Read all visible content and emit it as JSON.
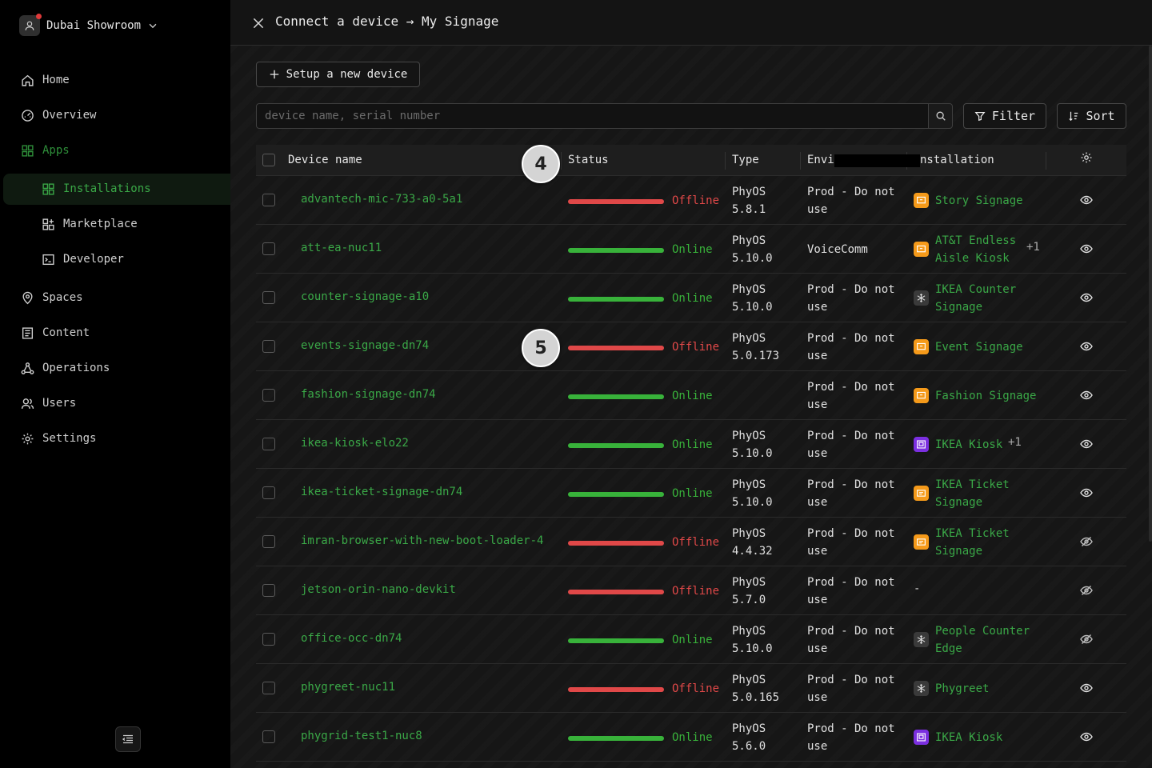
{
  "org": {
    "name": "Dubai Showroom"
  },
  "nav": {
    "home": "Home",
    "overview": "Overview",
    "apps": "Apps",
    "installations": "Installations",
    "marketplace": "Marketplace",
    "developer": "Developer",
    "spaces": "Spaces",
    "content": "Content",
    "operations": "Operations",
    "users": "Users",
    "settings": "Settings"
  },
  "panel": {
    "title": "Connect a device → My Signage"
  },
  "toolbar": {
    "setup_label": "Setup a new device",
    "search_placeholder": "device name, serial number",
    "filter_label": "Filter",
    "sort_label": "Sort"
  },
  "table": {
    "headers": {
      "device_name": "Device name",
      "status": "Status",
      "type": "Type",
      "environment": "Envi",
      "installation": "nstallation"
    },
    "rows": [
      {
        "name": "advantech-mic-733-a0-5a1",
        "status": "Offline",
        "type1": "PhyOS",
        "type2": "5.8.1",
        "env1": "Prod - Do not",
        "env2": "use",
        "inst1": "Story Signage",
        "inst2": "",
        "inst_icon": "signage",
        "extra": "",
        "visible": true
      },
      {
        "name": "att-ea-nuc11",
        "status": "Online",
        "type1": "PhyOS",
        "type2": "5.10.0",
        "env1": "VoiceComm",
        "env2": "",
        "inst1": "AT&T Endless",
        "inst2": "Aisle Kiosk",
        "inst_icon": "signage",
        "extra": "+1",
        "visible": true
      },
      {
        "name": "counter-signage-a10",
        "status": "Online",
        "type1": "PhyOS",
        "type2": "5.10.0",
        "env1": "Prod - Do not",
        "env2": "use",
        "inst1": "IKEA Counter",
        "inst2": "Signage",
        "inst_icon": "gear",
        "extra": "",
        "visible": true
      },
      {
        "name": "events-signage-dn74",
        "status": "Offline",
        "type1": "PhyOS",
        "type2": "5.0.173",
        "env1": "Prod - Do not",
        "env2": "use",
        "inst1": "Event Signage",
        "inst2": "",
        "inst_icon": "signage",
        "extra": "",
        "visible": true
      },
      {
        "name": "fashion-signage-dn74",
        "status": "Online",
        "type1": "",
        "type2": "",
        "env1": "Prod - Do not",
        "env2": "use",
        "inst1": "Fashion Signage",
        "inst2": "",
        "inst_icon": "signage",
        "extra": "",
        "visible": true
      },
      {
        "name": "ikea-kiosk-elo22",
        "status": "Online",
        "type1": "PhyOS",
        "type2": "5.10.0",
        "env1": "Prod - Do not",
        "env2": "use",
        "inst1": "IKEA Kiosk",
        "inst2": "",
        "inst_icon": "kiosk",
        "extra": "+1",
        "visible": true
      },
      {
        "name": "ikea-ticket-signage-dn74",
        "status": "Online",
        "type1": "PhyOS",
        "type2": "5.10.0",
        "env1": "Prod - Do not",
        "env2": "use",
        "inst1": "IKEA Ticket",
        "inst2": "Signage",
        "inst_icon": "ticket",
        "extra": "",
        "visible": true
      },
      {
        "name": "imran-browser-with-new-boot-loader-4",
        "status": "Offline",
        "type1": "PhyOS",
        "type2": "4.4.32",
        "env1": "Prod - Do not",
        "env2": "use",
        "inst1": "IKEA Ticket",
        "inst2": "Signage",
        "inst_icon": "ticket",
        "extra": "",
        "visible": false
      },
      {
        "name": "jetson-orin-nano-devkit",
        "status": "Offline",
        "type1": "PhyOS",
        "type2": "5.7.0",
        "env1": "Prod - Do not",
        "env2": "use",
        "inst1": "-",
        "inst2": "",
        "inst_icon": "none",
        "extra": "",
        "visible": false
      },
      {
        "name": "office-occ-dn74",
        "status": "Online",
        "type1": "PhyOS",
        "type2": "5.10.0",
        "env1": "Prod - Do not",
        "env2": "use",
        "inst1": "People Counter",
        "inst2": "Edge",
        "inst_icon": "gear",
        "extra": "",
        "visible": false
      },
      {
        "name": "phygreet-nuc11",
        "status": "Offline",
        "type1": "PhyOS",
        "type2": "5.0.165",
        "env1": "Prod - Do not",
        "env2": "use",
        "inst1": "Phygreet",
        "inst2": "",
        "inst_icon": "gear",
        "extra": "",
        "visible": true
      },
      {
        "name": "phygrid-test1-nuc8",
        "status": "Online",
        "type1": "PhyOS",
        "type2": "5.6.0",
        "env1": "Prod - Do not",
        "env2": "use",
        "inst1": "IKEA Kiosk",
        "inst2": "",
        "inst_icon": "kiosk",
        "extra": "",
        "visible": true
      }
    ]
  },
  "markers": {
    "a": "4",
    "b": "5"
  },
  "colors": {
    "online": "#38b23a",
    "offline": "#e04848",
    "accent": "#3aa847",
    "signage_icon": "#f59a1a",
    "kiosk_icon": "#7b2fe0",
    "gear_icon": "#3a3a3a"
  },
  "icons": {
    "signage": "monitor-icon",
    "ticket": "ticket-icon",
    "kiosk": "kiosk-icon",
    "gear": "snowflake-icon"
  }
}
